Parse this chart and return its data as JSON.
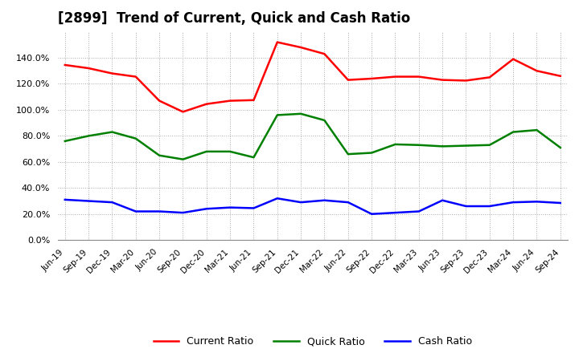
{
  "title": "[2899]  Trend of Current, Quick and Cash Ratio",
  "x_labels": [
    "Jun-19",
    "Sep-19",
    "Dec-19",
    "Mar-20",
    "Jun-20",
    "Sep-20",
    "Dec-20",
    "Mar-21",
    "Jun-21",
    "Sep-21",
    "Dec-21",
    "Mar-22",
    "Jun-22",
    "Sep-22",
    "Dec-22",
    "Mar-23",
    "Jun-23",
    "Sep-23",
    "Dec-23",
    "Mar-24",
    "Jun-24",
    "Sep-24"
  ],
  "current_ratio": [
    134.5,
    132.0,
    128.0,
    125.5,
    107.0,
    98.5,
    104.5,
    107.0,
    107.5,
    152.0,
    148.0,
    143.0,
    123.0,
    124.0,
    125.5,
    125.5,
    123.0,
    122.5,
    125.0,
    139.0,
    130.0,
    126.0
  ],
  "quick_ratio": [
    76.0,
    80.0,
    83.0,
    78.0,
    65.0,
    62.0,
    68.0,
    68.0,
    63.5,
    96.0,
    97.0,
    92.0,
    66.0,
    67.0,
    73.5,
    73.0,
    72.0,
    72.5,
    73.0,
    83.0,
    84.5,
    71.0
  ],
  "cash_ratio": [
    31.0,
    30.0,
    29.0,
    22.0,
    22.0,
    21.0,
    24.0,
    25.0,
    24.5,
    32.0,
    29.0,
    30.5,
    29.0,
    20.0,
    21.0,
    22.0,
    30.5,
    26.0,
    26.0,
    29.0,
    29.5,
    28.5
  ],
  "current_color": "#FF0000",
  "quick_color": "#008000",
  "cash_color": "#0000FF",
  "ylim": [
    0.0,
    160.0
  ],
  "yticks": [
    0.0,
    20.0,
    40.0,
    60.0,
    80.0,
    100.0,
    120.0,
    140.0
  ],
  "background_color": "#ffffff",
  "plot_bg_color": "#ffffff",
  "grid_color": "#aaaaaa",
  "title_fontsize": 12,
  "legend_labels": [
    "Current Ratio",
    "Quick Ratio",
    "Cash Ratio"
  ],
  "line_width": 1.8
}
